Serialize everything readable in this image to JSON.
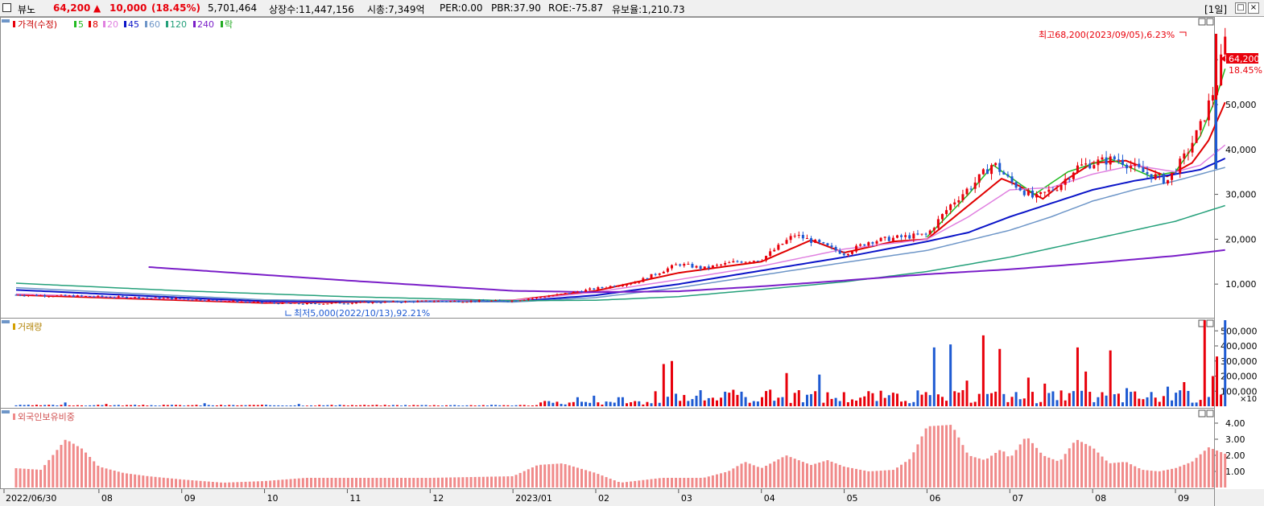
{
  "header": {
    "name": "뷰노",
    "price": "64,200",
    "change_arrow": "▲",
    "change": "10,000",
    "change_pct": "(18.45%)",
    "volume": "5,701,464",
    "listed_shares": "상장수:11,447,156",
    "market_cap": "시총:7,349억",
    "per": "PER:0.00",
    "pbr": "PBR:37.90",
    "roe": "ROE:-75.87",
    "reserve_ratio": "유보율:1,210.73",
    "period": "[1일]",
    "btn_max": "□",
    "btn_close": "×"
  },
  "legend_price": {
    "label": "가격(수정)",
    "ma": [
      {
        "label": "5",
        "color": "#22bb22"
      },
      {
        "label": "8",
        "color": "#e00000"
      },
      {
        "label": "20",
        "color": "#e080e0"
      },
      {
        "label": "45",
        "color": "#0a14c8"
      },
      {
        "label": "60",
        "color": "#6e96c8"
      },
      {
        "label": "120",
        "color": "#24a07a"
      },
      {
        "label": "240",
        "color": "#7a1ec8"
      },
      {
        "label": "락",
        "color": "#22aa22"
      }
    ]
  },
  "legend_volume": "거래량",
  "legend_foreign": "외국인보유비중",
  "annotations": {
    "high": "최고68,200(2023/09/05),6.23%",
    "low": "최저5,000(2022/10/13),92.21%",
    "last_price": "64,200",
    "last_pct": "18.45%"
  },
  "colors": {
    "up": "#e8000b",
    "down": "#1e5ad2",
    "bar_pink": "#f08a8a"
  },
  "chart_data": [
    {
      "type": "candlestick",
      "name": "가격(수정)",
      "y_ticks": [
        "10,000",
        "20,000",
        "30,000",
        "40,000",
        "50,000",
        "60,000"
      ],
      "y_tick_values": [
        10000,
        20000,
        30000,
        40000,
        50000,
        60000
      ],
      "ylim": [
        2500,
        69000
      ],
      "x_ticks": [
        "2022/06/30",
        "08",
        "09",
        "10",
        "11",
        "12",
        "2023/01",
        "02",
        "03",
        "04",
        "05",
        "06",
        "07",
        "08",
        "09"
      ],
      "x_tick_months": [
        0,
        1,
        2,
        3,
        4,
        5,
        6,
        7,
        8,
        9,
        10,
        11,
        12,
        13,
        14
      ],
      "close_by_month": [
        [
          0,
          7600
        ],
        [
          0.5,
          7400
        ],
        [
          1,
          7200
        ],
        [
          1.5,
          7000
        ],
        [
          2,
          6700
        ],
        [
          2.5,
          6300
        ],
        [
          3,
          5800
        ],
        [
          3.5,
          5600
        ],
        [
          4,
          5800
        ],
        [
          4.5,
          6000
        ],
        [
          5,
          6200
        ],
        [
          5.5,
          6200
        ],
        [
          6,
          6300
        ],
        [
          6.5,
          7500
        ],
        [
          7,
          9000
        ],
        [
          7.5,
          10500
        ],
        [
          8,
          14500
        ],
        [
          8.3,
          13500
        ],
        [
          8.7,
          15000
        ],
        [
          9,
          15500
        ],
        [
          9.4,
          21000
        ],
        [
          9.7,
          19000
        ],
        [
          10,
          16800
        ],
        [
          10.3,
          19500
        ],
        [
          10.7,
          20500
        ],
        [
          11,
          21000
        ],
        [
          11.3,
          28000
        ],
        [
          11.6,
          33000
        ],
        [
          11.8,
          37000
        ],
        [
          12,
          33000
        ],
        [
          12.3,
          29000
        ],
        [
          12.6,
          32000
        ],
        [
          12.8,
          36000
        ],
        [
          13,
          37000
        ],
        [
          13.3,
          38000
        ],
        [
          13.6,
          35000
        ],
        [
          13.9,
          33000
        ],
        [
          14.1,
          38000
        ],
        [
          14.3,
          45000
        ],
        [
          14.5,
          55000
        ],
        [
          14.6,
          64200
        ]
      ],
      "moving_averages": [
        {
          "name": "8",
          "color": "#e00000",
          "points": [
            [
              0,
              7600
            ],
            [
              3,
              5800
            ],
            [
              6,
              6400
            ],
            [
              7,
              8500
            ],
            [
              8,
              12500
            ],
            [
              9,
              15000
            ],
            [
              9.6,
              19800
            ],
            [
              10,
              17000
            ],
            [
              10.6,
              19500
            ],
            [
              11,
              20000
            ],
            [
              11.3,
              24500
            ],
            [
              11.7,
              30500
            ],
            [
              11.9,
              33500
            ],
            [
              12.1,
              32000
            ],
            [
              12.4,
              29000
            ],
            [
              12.7,
              33500
            ],
            [
              13,
              37000
            ],
            [
              13.4,
              37500
            ],
            [
              13.9,
              34000
            ],
            [
              14.2,
              37000
            ],
            [
              14.4,
              42000
            ],
            [
              14.6,
              50500
            ]
          ]
        },
        {
          "name": "5",
          "color": "#22bb22",
          "points": [
            [
              11,
              20500
            ],
            [
              11.5,
              30000
            ],
            [
              11.8,
              36500
            ],
            [
              12.3,
              30000
            ],
            [
              12.7,
              35000
            ],
            [
              13.2,
              38000
            ],
            [
              13.7,
              34000
            ],
            [
              14,
              35000
            ],
            [
              14.3,
              43000
            ],
            [
              14.5,
              52000
            ],
            [
              14.6,
              58000
            ]
          ]
        },
        {
          "name": "20",
          "color": "#e080e0",
          "points": [
            [
              0,
              7800
            ],
            [
              3,
              6000
            ],
            [
              6,
              6400
            ],
            [
              7,
              8200
            ],
            [
              8,
              11000
            ],
            [
              9,
              14000
            ],
            [
              10,
              17800
            ],
            [
              11,
              20000
            ],
            [
              11.5,
              25000
            ],
            [
              12,
              31000
            ],
            [
              12.5,
              31500
            ],
            [
              13,
              34500
            ],
            [
              13.5,
              36500
            ],
            [
              14,
              35000
            ],
            [
              14.3,
              36500
            ],
            [
              14.6,
              41000
            ]
          ]
        },
        {
          "name": "45",
          "color": "#0a14c8",
          "points": [
            [
              0,
              8700
            ],
            [
              2,
              7000
            ],
            [
              3,
              6200
            ],
            [
              6,
              6100
            ],
            [
              7,
              7500
            ],
            [
              8,
              10000
            ],
            [
              9,
              13000
            ],
            [
              10,
              16000
            ],
            [
              11,
              19500
            ],
            [
              11.5,
              21500
            ],
            [
              12,
              25000
            ],
            [
              12.5,
              28000
            ],
            [
              13,
              31000
            ],
            [
              13.5,
              33000
            ],
            [
              14,
              34500
            ],
            [
              14.3,
              35500
            ],
            [
              14.6,
              38000
            ]
          ]
        },
        {
          "name": "60",
          "color": "#6e96c8",
          "points": [
            [
              0,
              9200
            ],
            [
              2,
              7400
            ],
            [
              3,
              6500
            ],
            [
              6,
              6000
            ],
            [
              7,
              7000
            ],
            [
              8,
              9200
            ],
            [
              9,
              12000
            ],
            [
              10,
              14800
            ],
            [
              11,
              17500
            ],
            [
              12,
              22000
            ],
            [
              12.5,
              25000
            ],
            [
              13,
              28500
            ],
            [
              13.5,
              31000
            ],
            [
              14,
              33000
            ],
            [
              14.6,
              36000
            ]
          ]
        },
        {
          "name": "120",
          "color": "#24a07a",
          "points": [
            [
              0,
              10200
            ],
            [
              2,
              8500
            ],
            [
              4,
              7200
            ],
            [
              6,
              6300
            ],
            [
              7,
              6400
            ],
            [
              8,
              7200
            ],
            [
              9,
              8800
            ],
            [
              10,
              10500
            ],
            [
              11,
              12800
            ],
            [
              12,
              16000
            ],
            [
              13,
              20000
            ],
            [
              14,
              24000
            ],
            [
              14.6,
              27500
            ]
          ]
        },
        {
          "name": "240",
          "color": "#7a1ec8",
          "points": [
            [
              1.6,
              13800
            ],
            [
              4,
              10800
            ],
            [
              6,
              8500
            ],
            [
              7,
              8200
            ],
            [
              8,
              8400
            ],
            [
              9,
              9500
            ],
            [
              10,
              10800
            ],
            [
              11,
              12200
            ],
            [
              12,
              13300
            ],
            [
              13,
              14700
            ],
            [
              14,
              16300
            ],
            [
              14.6,
              17600
            ]
          ]
        }
      ]
    },
    {
      "type": "bar",
      "name": "거래량",
      "y_ticks": [
        "100,000",
        "200,000",
        "300,000",
        "400,000",
        "500,000"
      ],
      "y_tick_values": [
        100000,
        200000,
        300000,
        400000,
        500000
      ],
      "unit_note": "×10",
      "ylim": [
        0,
        560000
      ],
      "spikes_by_month": [
        [
          0.6,
          25000
        ],
        [
          1.1,
          15000
        ],
        [
          2.3,
          20000
        ],
        [
          3.4,
          15000
        ],
        [
          6.4,
          35000
        ],
        [
          6.8,
          60000
        ],
        [
          7,
          70000
        ],
        [
          7.3,
          60000
        ],
        [
          7.8,
          280000
        ],
        [
          7.9,
          300000
        ],
        [
          8.6,
          90000
        ],
        [
          9.1,
          110000
        ],
        [
          9.3,
          220000
        ],
        [
          9.7,
          210000
        ],
        [
          10.3,
          100000
        ],
        [
          10.6,
          90000
        ],
        [
          11.1,
          390000
        ],
        [
          11.3,
          410000
        ],
        [
          11.5,
          170000
        ],
        [
          11.7,
          470000
        ],
        [
          11.9,
          380000
        ],
        [
          12.2,
          190000
        ],
        [
          12.4,
          150000
        ],
        [
          12.8,
          390000
        ],
        [
          12.9,
          230000
        ],
        [
          13.2,
          370000
        ],
        [
          13.4,
          120000
        ],
        [
          13.9,
          130000
        ],
        [
          14.1,
          160000
        ],
        [
          14.35,
          620000
        ],
        [
          14.45,
          200000
        ],
        [
          14.5,
          330000
        ],
        [
          14.6,
          580000
        ]
      ]
    },
    {
      "type": "bar",
      "name": "외국인보유비중",
      "y_ticks": [
        "1.00",
        "2.00",
        "3.00",
        "4.00"
      ],
      "y_tick_values": [
        1,
        2,
        3,
        4
      ],
      "ylim": [
        0,
        4.7
      ],
      "values_by_month": [
        [
          0,
          1.2
        ],
        [
          0.3,
          1.1
        ],
        [
          0.6,
          3.0
        ],
        [
          0.8,
          2.4
        ],
        [
          1.0,
          1.3
        ],
        [
          1.3,
          0.9
        ],
        [
          1.6,
          0.7
        ],
        [
          2.0,
          0.5
        ],
        [
          2.5,
          0.3
        ],
        [
          3.0,
          0.4
        ],
        [
          3.5,
          0.6
        ],
        [
          4.0,
          0.6
        ],
        [
          5.0,
          0.6
        ],
        [
          6.0,
          0.7
        ],
        [
          6.3,
          1.4
        ],
        [
          6.6,
          1.5
        ],
        [
          7.0,
          0.9
        ],
        [
          7.3,
          0.3
        ],
        [
          7.8,
          0.6
        ],
        [
          8.3,
          0.6
        ],
        [
          8.6,
          1.0
        ],
        [
          8.8,
          1.6
        ],
        [
          9.0,
          1.2
        ],
        [
          9.3,
          2.0
        ],
        [
          9.6,
          1.4
        ],
        [
          9.8,
          1.7
        ],
        [
          10.0,
          1.3
        ],
        [
          10.3,
          1.0
        ],
        [
          10.6,
          1.1
        ],
        [
          10.8,
          1.8
        ],
        [
          11.0,
          3.8
        ],
        [
          11.3,
          3.9
        ],
        [
          11.5,
          2.0
        ],
        [
          11.7,
          1.7
        ],
        [
          11.9,
          2.4
        ],
        [
          12.0,
          1.8
        ],
        [
          12.2,
          3.2
        ],
        [
          12.4,
          2.0
        ],
        [
          12.6,
          1.6
        ],
        [
          12.8,
          3.0
        ],
        [
          13.0,
          2.5
        ],
        [
          13.2,
          1.5
        ],
        [
          13.4,
          1.6
        ],
        [
          13.6,
          1.1
        ],
        [
          13.8,
          1.0
        ],
        [
          14.0,
          1.2
        ],
        [
          14.2,
          1.6
        ],
        [
          14.4,
          2.5
        ],
        [
          14.6,
          2.1
        ]
      ]
    }
  ]
}
